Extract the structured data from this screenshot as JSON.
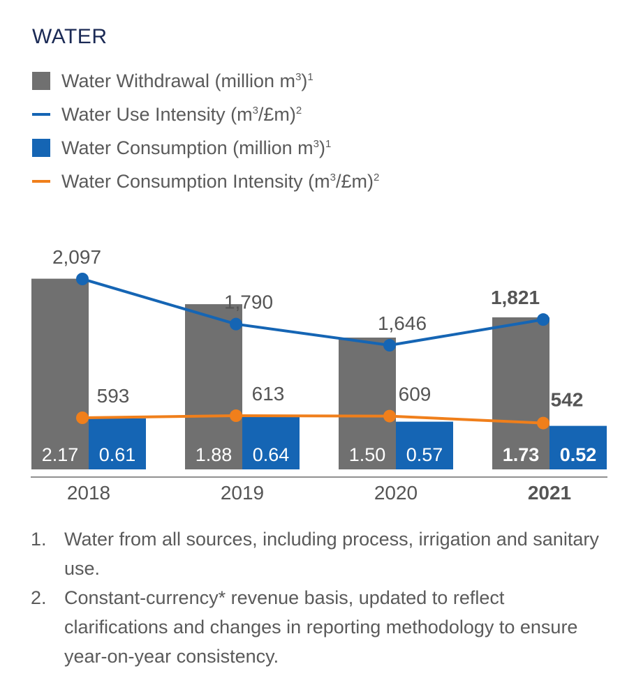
{
  "title": "WATER",
  "legend": [
    {
      "label": "Water Withdrawal (million m",
      "sup1": "3",
      "tail": ")",
      "sup2": "1",
      "kind": "box",
      "color": "#707070"
    },
    {
      "label": "Water Use Intensity (m",
      "sup1": "3",
      "tail": "/£m)",
      "sup2": "2",
      "kind": "line",
      "color": "#1565b4"
    },
    {
      "label": "Water Consumption (million m",
      "sup1": "3",
      "tail": ")",
      "sup2": "1",
      "kind": "box",
      "color": "#1565b4"
    },
    {
      "label": "Water Consumption Intensity (m",
      "sup1": "3",
      "tail": "/£m)",
      "sup2": "2",
      "kind": "line",
      "color": "#f07f1b"
    }
  ],
  "chart_data": {
    "type": "bar",
    "categories": [
      "2018",
      "2019",
      "2020",
      "2021"
    ],
    "highlight_category": "2021",
    "series": [
      {
        "name": "Water Withdrawal (million m³)",
        "kind": "bar",
        "color": "#707070",
        "values": [
          2.17,
          1.88,
          1.5,
          1.73
        ],
        "labels": [
          "2.17",
          "1.88",
          "1.50",
          "1.73"
        ]
      },
      {
        "name": "Water Consumption (million m³)",
        "kind": "bar",
        "color": "#1565b4",
        "values": [
          0.61,
          0.64,
          0.57,
          0.52
        ],
        "labels": [
          "0.61",
          "0.64",
          "0.57",
          "0.52"
        ]
      },
      {
        "name": "Water Use Intensity (m³/£m)",
        "kind": "line",
        "color": "#1565b4",
        "values": [
          2097,
          1790,
          1646,
          1821
        ],
        "labels": [
          "2,097",
          "1,790",
          "1,646",
          "1,821"
        ]
      },
      {
        "name": "Water Consumption Intensity (m³/£m)",
        "kind": "line",
        "color": "#f07f1b",
        "values": [
          593,
          613,
          609,
          542
        ],
        "labels": [
          "593",
          "613",
          "609",
          "542"
        ]
      }
    ],
    "legend_position": "top-left",
    "grid": false
  },
  "footnotes": [
    {
      "num": "1.",
      "text": "Water from all sources, including process, irrigation and sanitary use."
    },
    {
      "num": "2.",
      "text": "Constant-currency* revenue basis, updated to reflect clarifications and changes in reporting methodology to ensure year-on-year consistency."
    }
  ]
}
